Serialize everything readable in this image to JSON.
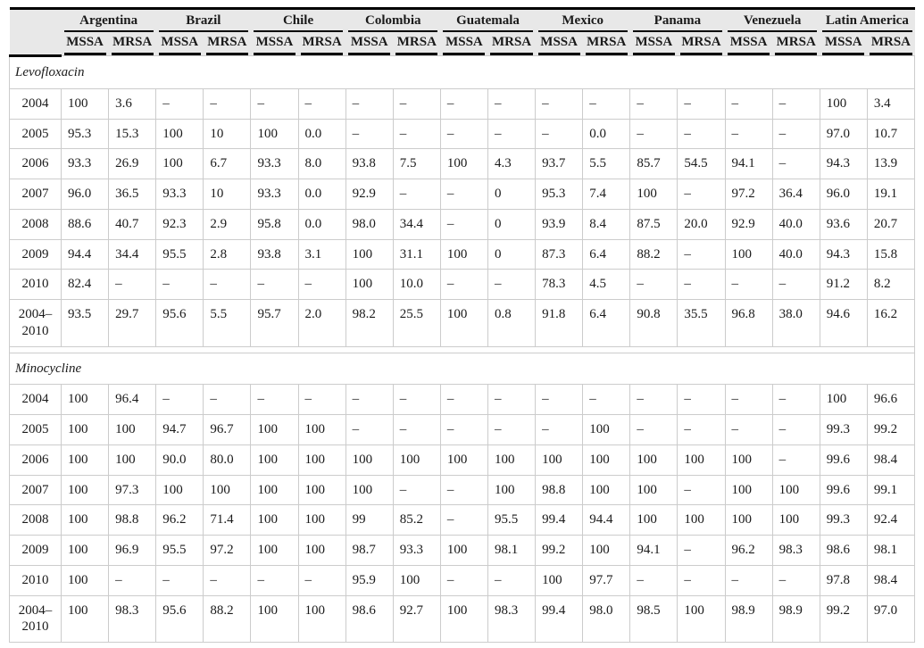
{
  "table": {
    "corner_label": "",
    "countries": [
      "Argentina",
      "Brazil",
      "Chile",
      "Colombia",
      "Guatemala",
      "Mexico",
      "Panama",
      "Venezuela",
      "Latin America"
    ],
    "subheaders": [
      "MSSA",
      "MRSA"
    ],
    "sections": [
      {
        "label": "Levofloxacin",
        "rows": [
          {
            "year": "2004",
            "values": [
              "100",
              "3.6",
              "–",
              "–",
              "–",
              "–",
              "–",
              "–",
              "–",
              "–",
              "–",
              "–",
              "–",
              "–",
              "–",
              "–",
              "100",
              "3.4"
            ]
          },
          {
            "year": "2005",
            "values": [
              "95.3",
              "15.3",
              "100",
              "10",
              "100",
              "0.0",
              "–",
              "–",
              "–",
              "–",
              "–",
              "0.0",
              "–",
              "–",
              "–",
              "–",
              "97.0",
              "10.7"
            ]
          },
          {
            "year": "2006",
            "values": [
              "93.3",
              "26.9",
              "100",
              "6.7",
              "93.3",
              "8.0",
              "93.8",
              "7.5",
              "100",
              "4.3",
              "93.7",
              "5.5",
              "85.7",
              "54.5",
              "94.1",
              "–",
              "94.3",
              "13.9"
            ]
          },
          {
            "year": "2007",
            "values": [
              "96.0",
              "36.5",
              "93.3",
              "10",
              "93.3",
              "0.0",
              "92.9",
              "–",
              "–",
              "0",
              "95.3",
              "7.4",
              "100",
              "–",
              "97.2",
              "36.4",
              "96.0",
              "19.1"
            ]
          },
          {
            "year": "2008",
            "values": [
              "88.6",
              "40.7",
              "92.3",
              "2.9",
              "95.8",
              "0.0",
              "98.0",
              "34.4",
              "–",
              "0",
              "93.9",
              "8.4",
              "87.5",
              "20.0",
              "92.9",
              "40.0",
              "93.6",
              "20.7"
            ]
          },
          {
            "year": "2009",
            "values": [
              "94.4",
              "34.4",
              "95.5",
              "2.8",
              "93.8",
              "3.1",
              "100",
              "31.1",
              "100",
              "0",
              "87.3",
              "6.4",
              "88.2",
              "–",
              "100",
              "40.0",
              "94.3",
              "15.8"
            ]
          },
          {
            "year": "2010",
            "values": [
              "82.4",
              "–",
              "–",
              "–",
              "–",
              "–",
              "100",
              "10.0",
              "–",
              "–",
              "78.3",
              "4.5",
              "–",
              "–",
              "–",
              "–",
              "91.2",
              "8.2"
            ]
          },
          {
            "year": "2004–2010",
            "values": [
              "93.5",
              "29.7",
              "95.6",
              "5.5",
              "95.7",
              "2.0",
              "98.2",
              "25.5",
              "100",
              "0.8",
              "91.8",
              "6.4",
              "90.8",
              "35.5",
              "96.8",
              "38.0",
              "94.6",
              "16.2"
            ]
          }
        ]
      },
      {
        "label": "Minocycline",
        "rows": [
          {
            "year": "2004",
            "values": [
              "100",
              "96.4",
              "–",
              "–",
              "–",
              "–",
              "–",
              "–",
              "–",
              "–",
              "–",
              "–",
              "–",
              "–",
              "–",
              "–",
              "100",
              "96.6"
            ]
          },
          {
            "year": "2005",
            "values": [
              "100",
              "100",
              "94.7",
              "96.7",
              "100",
              "100",
              "–",
              "–",
              "–",
              "–",
              "–",
              "100",
              "–",
              "–",
              "–",
              "–",
              "99.3",
              "99.2"
            ]
          },
          {
            "year": "2006",
            "values": [
              "100",
              "100",
              "90.0",
              "80.0",
              "100",
              "100",
              "100",
              "100",
              "100",
              "100",
              "100",
              "100",
              "100",
              "100",
              "100",
              "–",
              "99.6",
              "98.4"
            ]
          },
          {
            "year": "2007",
            "values": [
              "100",
              "97.3",
              "100",
              "100",
              "100",
              "100",
              "100",
              "–",
              "–",
              "100",
              "98.8",
              "100",
              "100",
              "–",
              "100",
              "100",
              "99.6",
              "99.1"
            ]
          },
          {
            "year": "2008",
            "values": [
              "100",
              "98.8",
              "96.2",
              "71.4",
              "100",
              "100",
              "99",
              "85.2",
              "–",
              "95.5",
              "99.4",
              "94.4",
              "100",
              "100",
              "100",
              "100",
              "99.3",
              "92.4"
            ]
          },
          {
            "year": "2009",
            "values": [
              "100",
              "96.9",
              "95.5",
              "97.2",
              "100",
              "100",
              "98.7",
              "93.3",
              "100",
              "98.1",
              "99.2",
              "100",
              "94.1",
              "–",
              "96.2",
              "98.3",
              "98.6",
              "98.1"
            ]
          },
          {
            "year": "2010",
            "values": [
              "100",
              "–",
              "–",
              "–",
              "–",
              "–",
              "95.9",
              "100",
              "–",
              "–",
              "100",
              "97.7",
              "–",
              "–",
              "–",
              "–",
              "97.8",
              "98.4"
            ]
          },
          {
            "year": "2004–2010",
            "values": [
              "100",
              "98.3",
              "95.6",
              "88.2",
              "100",
              "100",
              "98.6",
              "92.7",
              "100",
              "98.3",
              "99.4",
              "98.0",
              "98.5",
              "100",
              "98.9",
              "98.9",
              "99.2",
              "97.0"
            ]
          }
        ]
      }
    ]
  }
}
